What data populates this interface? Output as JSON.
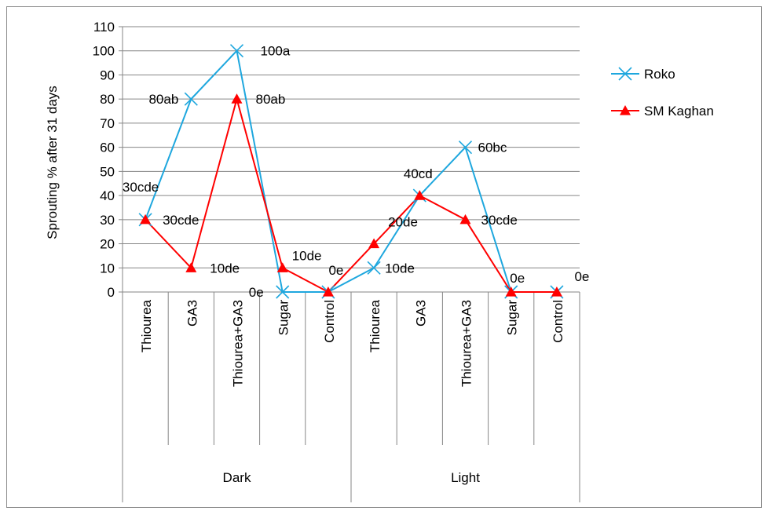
{
  "chart_data": {
    "type": "line",
    "title": "",
    "xlabel": "",
    "ylabel": "Sprouting % after 31 days",
    "ylim": [
      0,
      110
    ],
    "yticks": [
      0,
      10,
      20,
      30,
      40,
      50,
      60,
      70,
      80,
      90,
      100,
      110
    ],
    "grid": true,
    "legend_position": "right",
    "categories": [
      "Thiourea",
      "GA3",
      "Thiourea+GA3",
      "Sugar",
      "Control",
      "Thiourea",
      "GA3",
      "Thiourea+GA3",
      "Sugar",
      "Control"
    ],
    "groups": [
      {
        "label": "Dark",
        "count": 5
      },
      {
        "label": "Light",
        "count": 5
      }
    ],
    "series": [
      {
        "name": "Roko",
        "color": "#1EA7DE",
        "marker": "x",
        "values": [
          30,
          80,
          100,
          0,
          0,
          10,
          40,
          60,
          0,
          0
        ],
        "labels": [
          "30cde",
          "80ab",
          "100a",
          "0e",
          "0e",
          "10de",
          "40cd",
          "60bc",
          "0e",
          "0e"
        ]
      },
      {
        "name": "SM Kaghan",
        "color": "#FF0000",
        "marker": "triangle",
        "values": [
          30,
          10,
          80,
          10,
          0,
          20,
          40,
          30,
          0,
          0
        ],
        "labels": [
          "30cde",
          "10de",
          "80ab",
          "10de",
          "",
          "20de",
          "",
          "30cde",
          "",
          ""
        ]
      }
    ]
  }
}
